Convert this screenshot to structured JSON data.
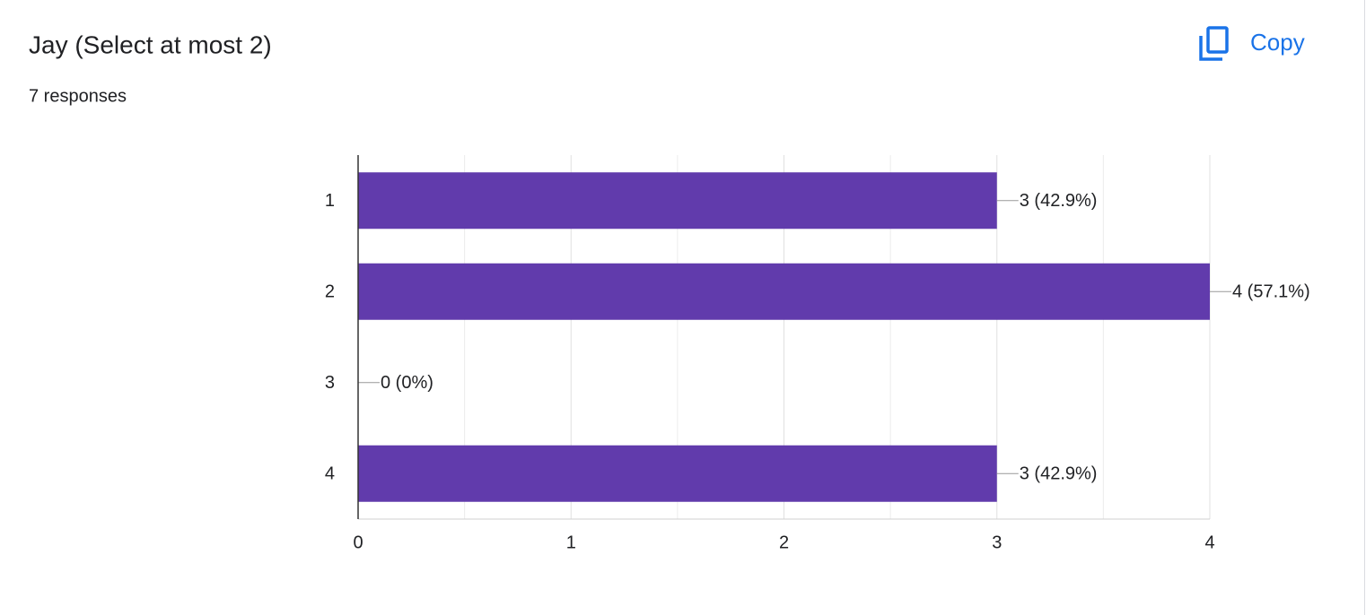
{
  "header": {
    "copy_button": "Copy"
  },
  "chart_data": {
    "type": "hbar",
    "title": "Jay (Select at most 2)",
    "subtitle": "7 responses",
    "categories": [
      "1",
      "2",
      "3",
      "4"
    ],
    "values": [
      3,
      4,
      0,
      3
    ],
    "value_labels": [
      "3 (42.9%)",
      "4 (57.1%)",
      "0 (0%)",
      "3 (42.9%)"
    ],
    "color": "#613bac",
    "xlim": [
      0,
      4
    ],
    "xticks": [
      0,
      1,
      2,
      3,
      4
    ],
    "minor_xticks": [
      0.5,
      1.5,
      2.5,
      3.5
    ],
    "grid": true
  }
}
